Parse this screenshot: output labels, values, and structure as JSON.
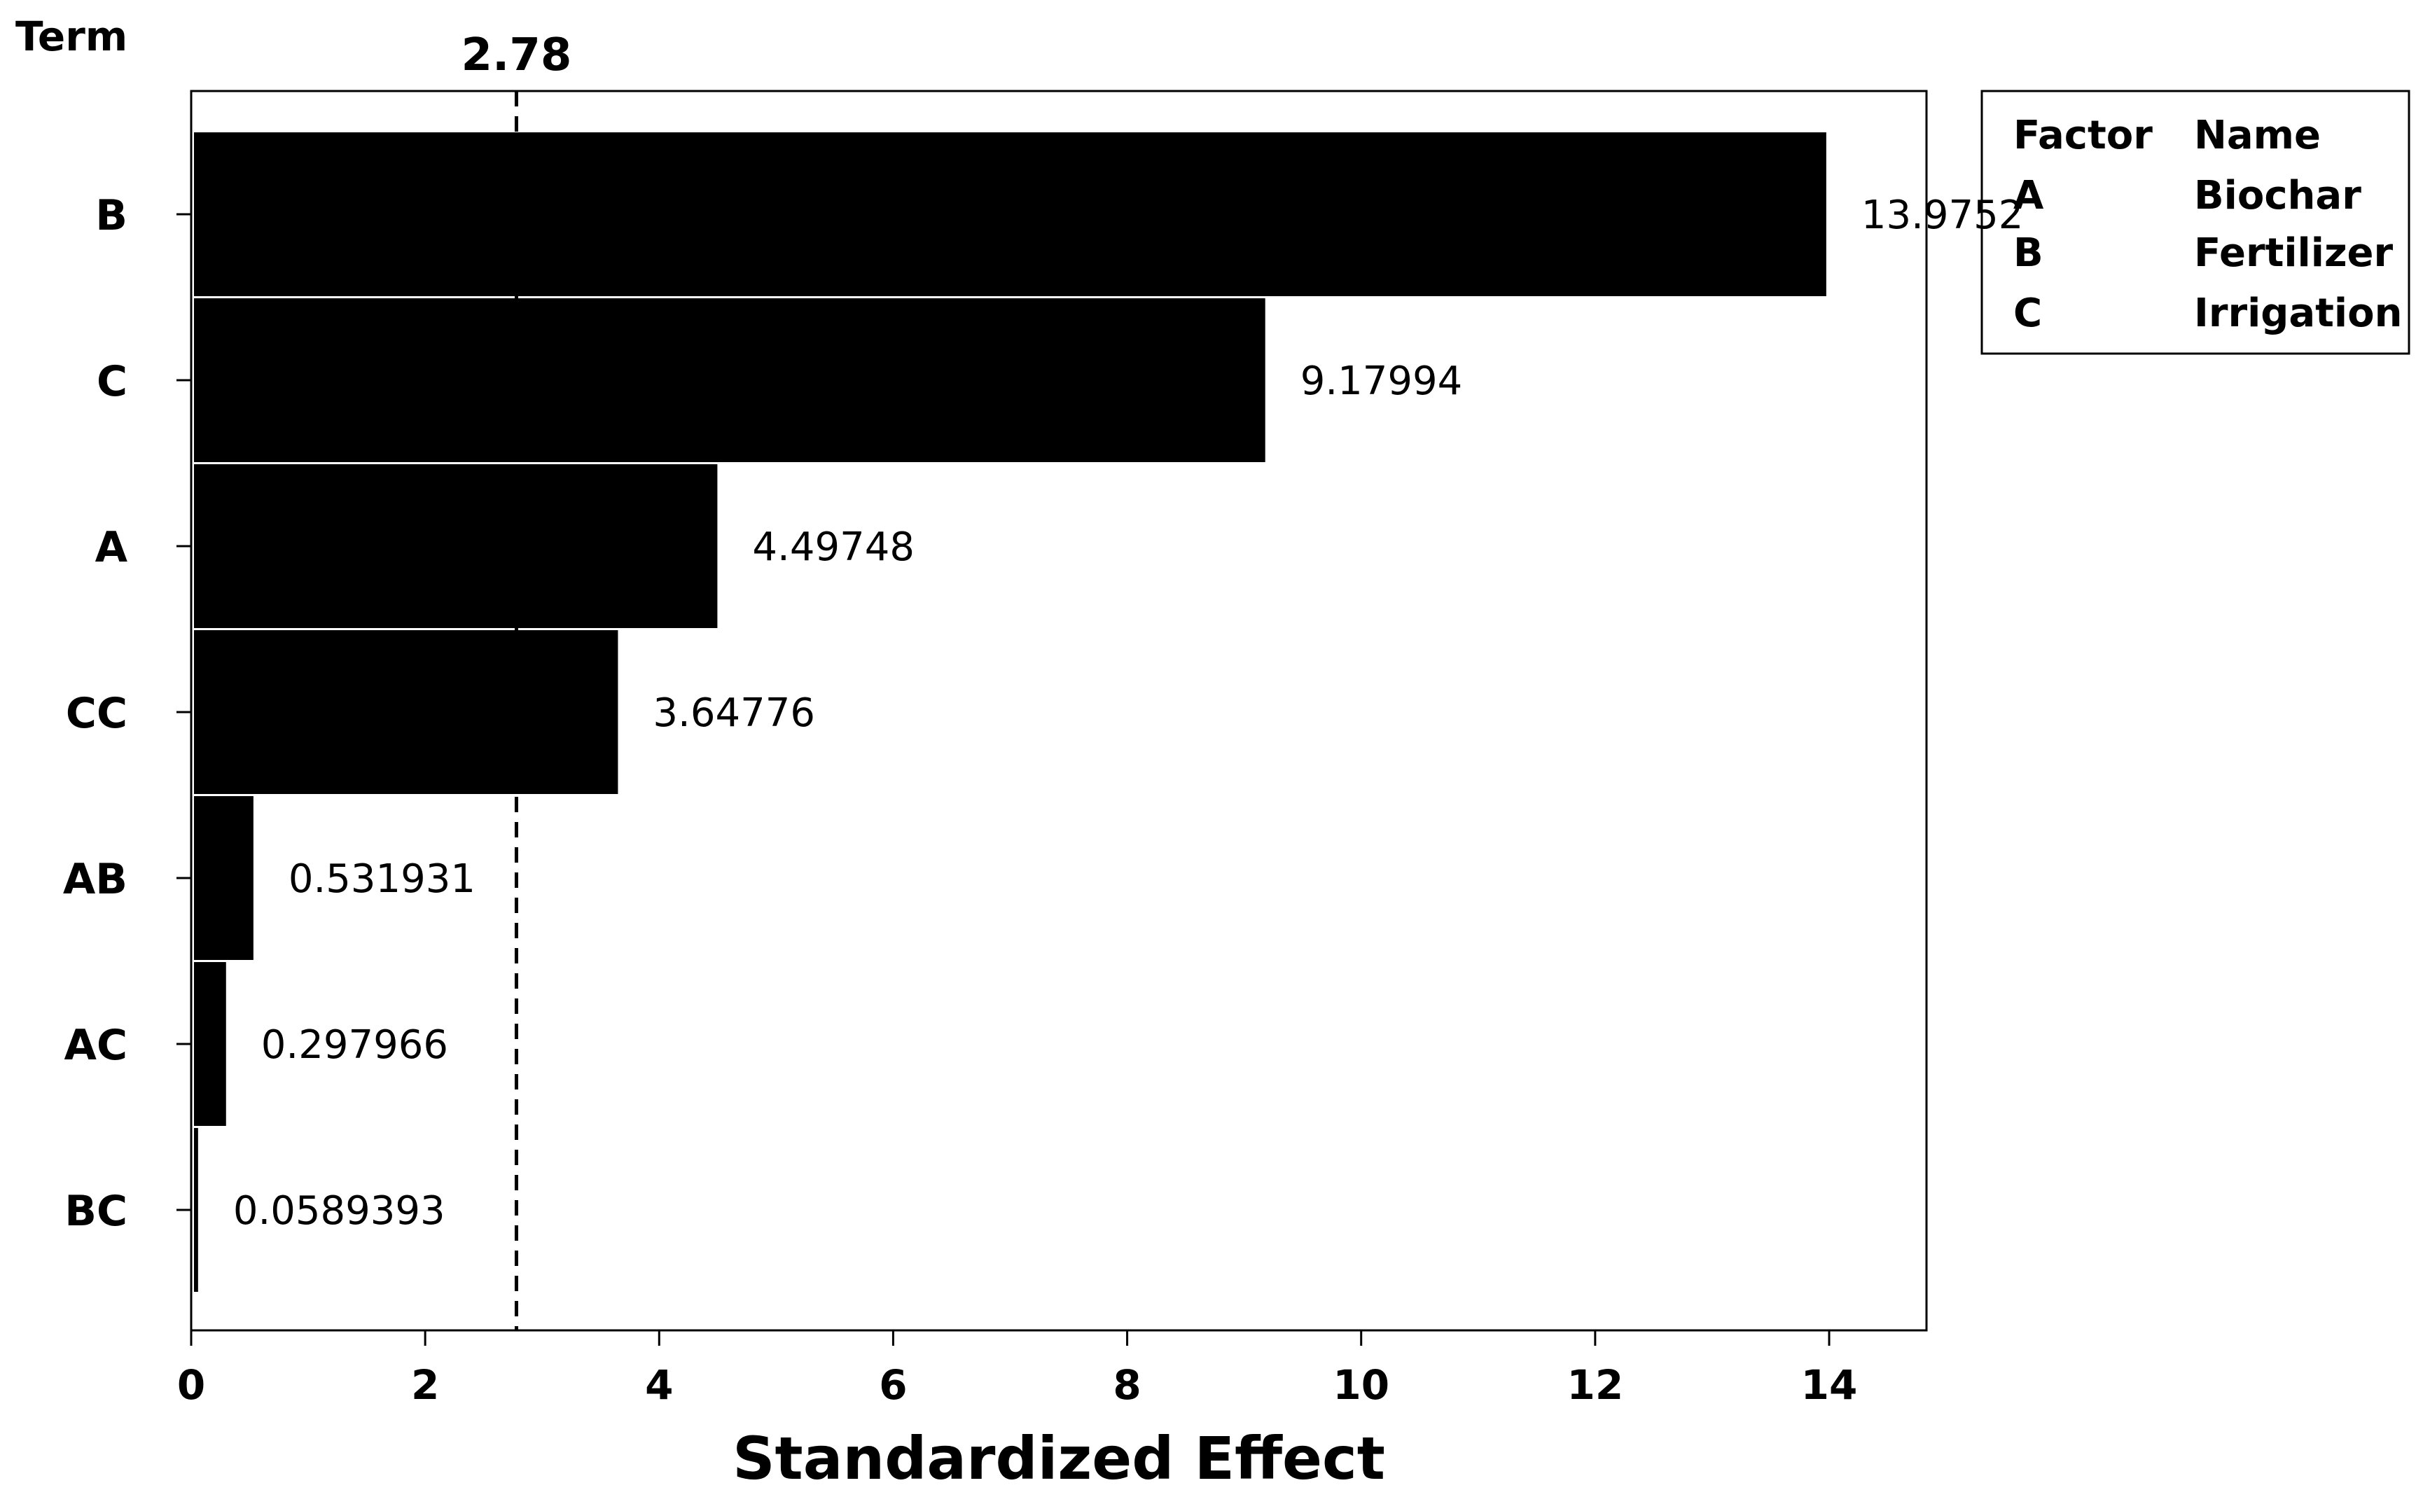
{
  "chart_data": {
    "type": "bar",
    "orientation": "horizontal",
    "y_axis_title": "Term",
    "xlabel": "Standardized Effect",
    "xlim": [
      0,
      14.8
    ],
    "x_ticks": [
      "0",
      "2",
      "4",
      "6",
      "8",
      "10",
      "12",
      "14"
    ],
    "categories": [
      "B",
      "C",
      "A",
      "CC",
      "AB",
      "AC",
      "BC"
    ],
    "values": [
      13.9752,
      9.17994,
      4.49748,
      3.64776,
      0.531931,
      0.297966,
      0.0589393
    ],
    "value_labels": [
      "13.9752",
      "9.17994",
      "4.49748",
      "3.64776",
      "0.531931",
      "0.297966",
      "0.0589393"
    ],
    "reference_line": {
      "value": 2.78,
      "label": "2.78"
    },
    "bar_color": "#000000",
    "grid": false,
    "legend": {
      "placement": "right",
      "header": {
        "factor": "Factor",
        "name": "Name"
      },
      "rows": [
        {
          "factor": "A",
          "name": "Biochar"
        },
        {
          "factor": "B",
          "name": "Fertilizer"
        },
        {
          "factor": "C",
          "name": "Irrigation"
        }
      ]
    }
  }
}
